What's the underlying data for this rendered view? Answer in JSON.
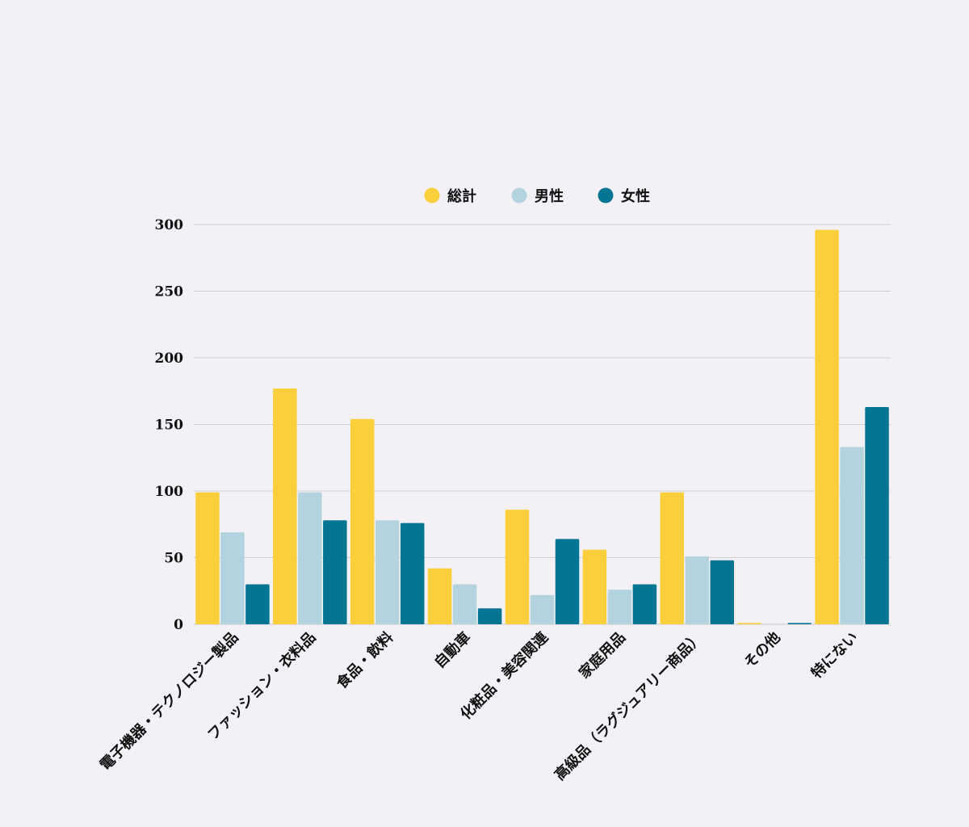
{
  "chart_data": {
    "type": "bar",
    "categories": [
      "電子機器・テクノロジー製品",
      "ファッション・衣料品",
      "食品・飲料",
      "自動車",
      "化粧品・美容関連",
      "家庭用品",
      "高級品（ラグジュアリー商品）",
      "その他",
      "特にない"
    ],
    "series": [
      {
        "name": "総計",
        "color": "#fbcf3b",
        "values": [
          99,
          177,
          154,
          42,
          86,
          56,
          99,
          1,
          296
        ]
      },
      {
        "name": "男性",
        "color": "#b3d3df",
        "values": [
          69,
          99,
          78,
          30,
          22,
          26,
          51,
          0,
          133
        ]
      },
      {
        "name": "女性",
        "color": "#047592",
        "values": [
          30,
          78,
          76,
          12,
          64,
          30,
          48,
          1,
          163
        ]
      }
    ],
    "yticks": [
      "0",
      "50",
      "100",
      "150",
      "200",
      "250",
      "300"
    ],
    "ylim": [
      0,
      300
    ],
    "grid": true,
    "legend_position": "top-center"
  }
}
